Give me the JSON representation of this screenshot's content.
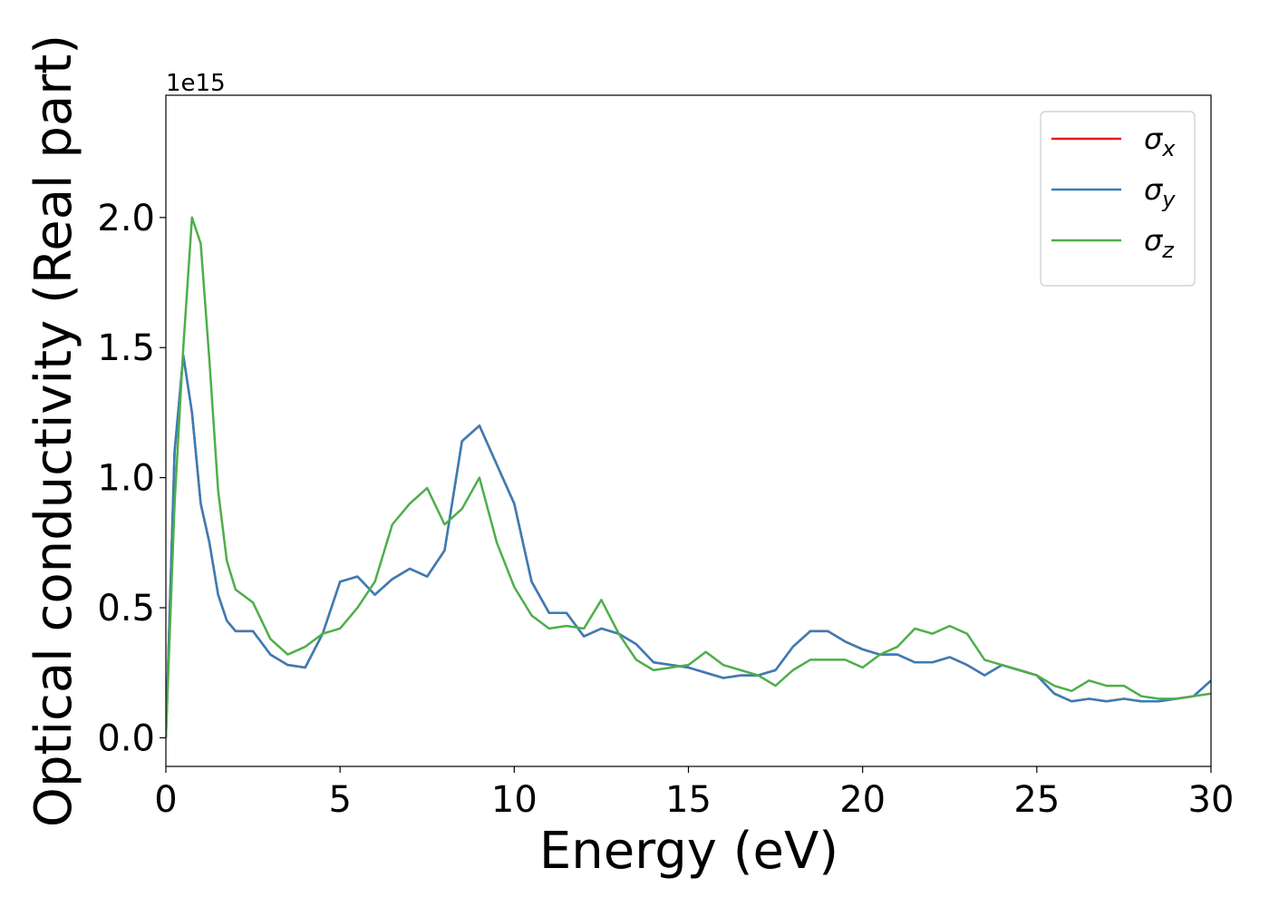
{
  "chart_data": {
    "type": "line",
    "xlabel": "Energy (eV)",
    "ylabel": "Optical conductivity (Real part)",
    "y_offset_label": "1e15",
    "x": [
      0,
      0.25,
      0.5,
      0.75,
      1,
      1.25,
      1.5,
      1.75,
      2,
      2.5,
      3,
      3.5,
      4,
      4.5,
      5,
      5.5,
      6,
      6.5,
      7,
      7.5,
      8,
      8.5,
      9,
      9.5,
      10,
      10.5,
      11,
      11.5,
      12,
      12.5,
      13,
      13.5,
      14,
      14.5,
      15,
      15.5,
      16,
      16.5,
      17,
      17.5,
      18,
      18.5,
      19,
      19.5,
      20,
      20.5,
      21,
      21.5,
      22,
      22.5,
      23,
      23.5,
      24,
      24.5,
      25,
      25.5,
      26,
      26.5,
      27,
      27.5,
      28,
      28.5,
      29,
      29.5,
      30
    ],
    "series": [
      {
        "name": "σx",
        "color": "#e41a1c",
        "values": [
          0,
          1.1,
          1.47,
          1.25,
          0.9,
          0.75,
          0.55,
          0.45,
          0.41,
          0.41,
          0.32,
          0.28,
          0.27,
          0.4,
          0.6,
          0.62,
          0.55,
          0.61,
          0.65,
          0.62,
          0.72,
          1.14,
          1.2,
          1.05,
          0.9,
          0.6,
          0.48,
          0.48,
          0.39,
          0.42,
          0.4,
          0.36,
          0.29,
          0.28,
          0.27,
          0.25,
          0.23,
          0.24,
          0.24,
          0.26,
          0.35,
          0.41,
          0.41,
          0.37,
          0.34,
          0.32,
          0.32,
          0.29,
          0.29,
          0.31,
          0.28,
          0.24,
          0.28,
          0.26,
          0.24,
          0.17,
          0.14,
          0.15,
          0.14,
          0.15,
          0.14,
          0.14,
          0.15,
          0.16,
          0.22
        ]
      },
      {
        "name": "σy",
        "color": "#377eb8",
        "values": [
          0,
          1.1,
          1.47,
          1.25,
          0.9,
          0.75,
          0.55,
          0.45,
          0.41,
          0.41,
          0.32,
          0.28,
          0.27,
          0.4,
          0.6,
          0.62,
          0.55,
          0.61,
          0.65,
          0.62,
          0.72,
          1.14,
          1.2,
          1.05,
          0.9,
          0.6,
          0.48,
          0.48,
          0.39,
          0.42,
          0.4,
          0.36,
          0.29,
          0.28,
          0.27,
          0.25,
          0.23,
          0.24,
          0.24,
          0.26,
          0.35,
          0.41,
          0.41,
          0.37,
          0.34,
          0.32,
          0.32,
          0.29,
          0.29,
          0.31,
          0.28,
          0.24,
          0.28,
          0.26,
          0.24,
          0.17,
          0.14,
          0.15,
          0.14,
          0.15,
          0.14,
          0.14,
          0.15,
          0.16,
          0.22
        ]
      },
      {
        "name": "σz",
        "color": "#4daf4a",
        "values": [
          0,
          0.9,
          1.5,
          2.0,
          1.9,
          1.45,
          0.95,
          0.68,
          0.57,
          0.52,
          0.38,
          0.32,
          0.35,
          0.4,
          0.42,
          0.5,
          0.6,
          0.82,
          0.9,
          0.96,
          0.82,
          0.88,
          1.0,
          0.75,
          0.58,
          0.47,
          0.42,
          0.43,
          0.42,
          0.53,
          0.4,
          0.3,
          0.26,
          0.27,
          0.28,
          0.33,
          0.28,
          0.26,
          0.24,
          0.2,
          0.26,
          0.3,
          0.3,
          0.3,
          0.27,
          0.32,
          0.35,
          0.42,
          0.4,
          0.43,
          0.4,
          0.3,
          0.28,
          0.26,
          0.24,
          0.2,
          0.18,
          0.22,
          0.2,
          0.2,
          0.16,
          0.15,
          0.15,
          0.16,
          0.17
        ]
      }
    ],
    "xlim": [
      0,
      30
    ],
    "xticks": [
      0,
      5,
      10,
      15,
      20,
      25,
      30
    ],
    "ylim": [
      -0.11,
      2.47
    ],
    "yticks": [
      {
        "value": 0,
        "label": "0.0"
      },
      0.5,
      {
        "value": 1,
        "label": "1.0"
      },
      1.5,
      {
        "value": 2,
        "label": "2.0"
      }
    ],
    "legend": "upper right",
    "grid": false
  }
}
